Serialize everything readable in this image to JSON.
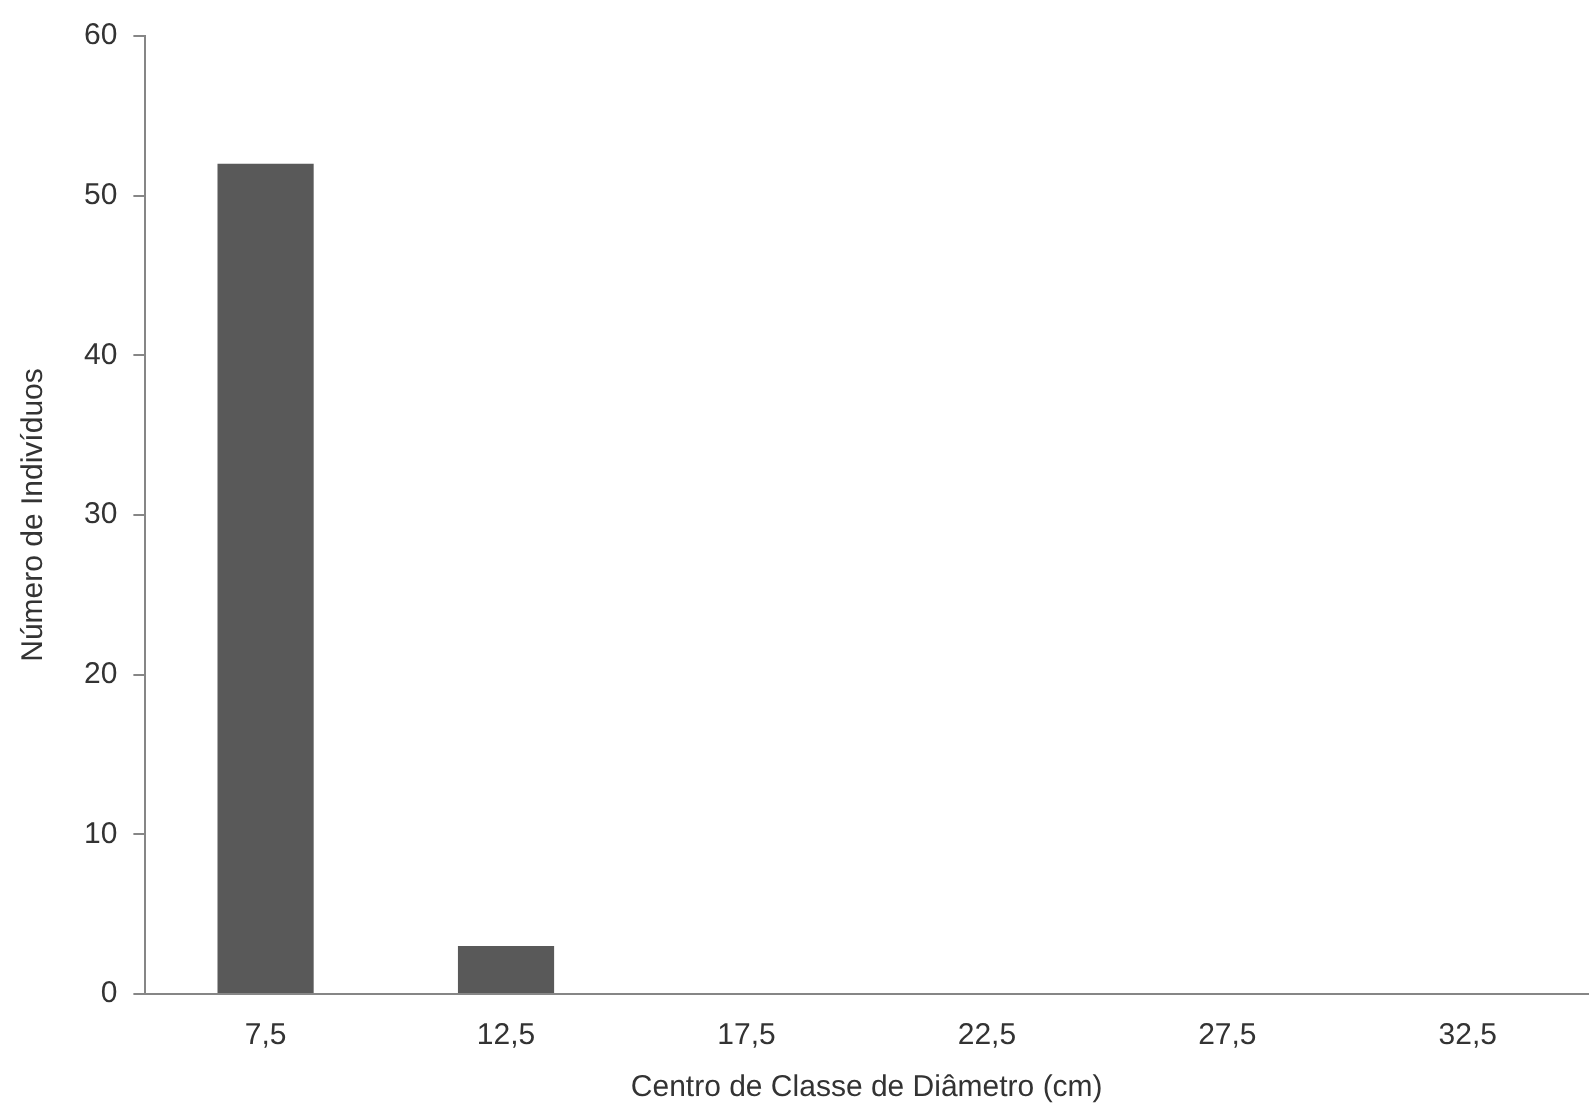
{
  "chart_data": {
    "type": "bar",
    "xlabel": "Centro de Classe de Diâmetro (cm)",
    "ylabel": "Número de Indivíduos",
    "categories": [
      "7,5",
      "12,5",
      "17,5",
      "22,5",
      "27,5",
      "32,5"
    ],
    "values": [
      52,
      3,
      0,
      0,
      0,
      0
    ],
    "color": "#595959",
    "ylim": [
      0,
      60
    ],
    "yticks": [
      0,
      10,
      20,
      30,
      40,
      50,
      60
    ]
  }
}
